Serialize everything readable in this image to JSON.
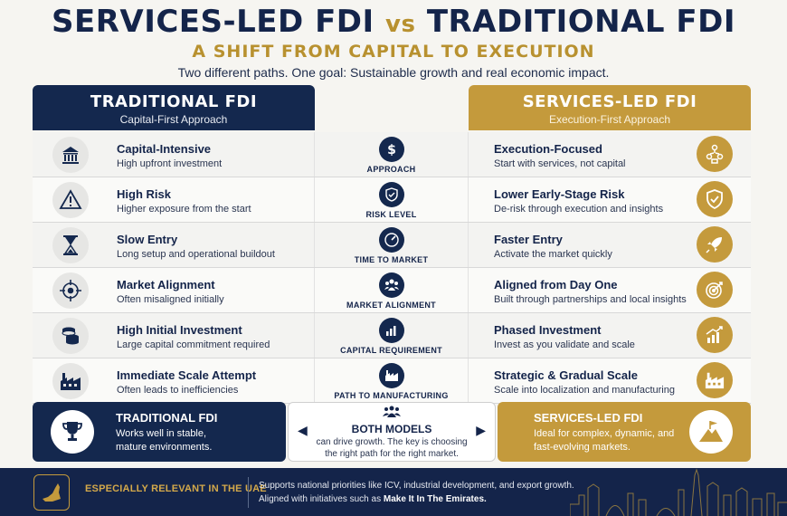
{
  "header": {
    "title_left": "SERVICES-LED FDI",
    "title_vs": "vs",
    "title_right": "TRADITIONAL FDI",
    "subtitle": "A SHIFT FROM CAPITAL TO EXECUTION",
    "tagline": "Two different paths. One goal: Sustainable growth and real economic impact."
  },
  "columns": {
    "left": {
      "title": "TRADITIONAL FDI",
      "subtitle": "Capital-First Approach"
    },
    "right": {
      "title": "SERVICES-LED FDI",
      "subtitle": "Execution-First Approach"
    }
  },
  "rows": [
    {
      "left_title": "Capital-Intensive",
      "left_desc": "High upfront investment",
      "left_icon": "bank-icon",
      "mid_label": "APPROACH",
      "mid_icon": "dollar-icon",
      "right_title": "Execution-Focused",
      "right_desc": "Start with services, not capital",
      "right_icon": "team-network-icon"
    },
    {
      "left_title": "High Risk",
      "left_desc": "Higher exposure from the start",
      "left_icon": "warning-icon",
      "mid_label": "RISK LEVEL",
      "mid_icon": "shield-icon",
      "right_title": "Lower Early-Stage Risk",
      "right_desc": "De-risk through execution and insights",
      "right_icon": "shield-check-icon"
    },
    {
      "left_title": "Slow Entry",
      "left_desc": "Long setup and operational buildout",
      "left_icon": "hourglass-icon",
      "mid_label": "TIME TO MARKET",
      "mid_icon": "speedometer-icon",
      "right_title": "Faster Entry",
      "right_desc": "Activate the market quickly",
      "right_icon": "rocket-icon"
    },
    {
      "left_title": "Market Alignment",
      "left_desc": "Often misaligned initially",
      "left_icon": "crosshair-icon",
      "mid_label": "MARKET ALIGNMENT",
      "mid_icon": "people-icon",
      "right_title": "Aligned from Day One",
      "right_desc": "Built through partnerships and local insights",
      "right_icon": "target-icon"
    },
    {
      "left_title": "High Initial Investment",
      "left_desc": "Large capital commitment required",
      "left_icon": "coins-icon",
      "mid_label": "CAPITAL REQUIREMENT",
      "mid_icon": "bar-chart-icon",
      "right_title": "Phased Investment",
      "right_desc": "Invest as you validate and scale",
      "right_icon": "growth-chart-icon"
    },
    {
      "left_title": "Immediate Scale Attempt",
      "left_desc": "Often leads to inefficiencies",
      "left_icon": "factory-icon",
      "mid_label": "PATH TO MANUFACTURING",
      "mid_icon": "factory-icon",
      "right_title": "Strategic & Gradual Scale",
      "right_desc": "Scale into localization and manufacturing",
      "right_icon": "factory-icon"
    }
  ],
  "bottom": {
    "left_title": "TRADITIONAL FDI",
    "left_body": "Works well in stable, mature environments.",
    "mid_title": "BOTH MODELS",
    "mid_body": "can drive growth. The key is choosing the right path for the right market.",
    "right_title": "SERVICES-LED FDI",
    "right_body": "Ideal for complex, dynamic, and fast-evolving markets."
  },
  "footer": {
    "label": "ESPECIALLY RELEVANT IN THE UAE",
    "line1": "Supports national priorities like ICV, industrial development, and export growth.",
    "line2_prefix": "Aligned with initiatives such as ",
    "line2_bold": "Make It In The Emirates."
  },
  "colors": {
    "navy": "#14284e",
    "gold": "#c49a3c"
  }
}
